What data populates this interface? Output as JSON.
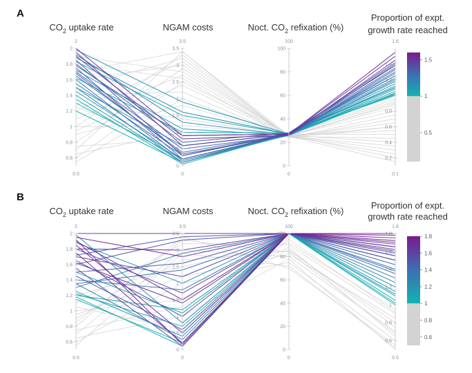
{
  "chart_data": [
    {
      "type": "parallel-coordinates",
      "panel_label": "A",
      "axes": [
        {
          "title": "CO",
          "subscript": "2",
          "title_suffix": " uptake rate",
          "title_line2": "",
          "range": [
            0.5,
            2
          ],
          "ticks": [
            "0.6",
            "0.8",
            "1",
            "1.2",
            "1.4",
            "1.6",
            "1.8",
            "2"
          ],
          "min_label": "0.5",
          "max_label": "2"
        },
        {
          "title": "NGAM costs",
          "subscript": "",
          "title_suffix": "",
          "title_line2": "",
          "range": [
            0,
            3.5
          ],
          "ticks": [
            "0",
            "0.5",
            "1",
            "1.5",
            "2",
            "2.5",
            "3",
            "3.5"
          ],
          "min_label": "0",
          "max_label": "3.5"
        },
        {
          "title": "Noct. CO",
          "subscript": "2",
          "title_suffix": " refixation (%)",
          "title_line2": "",
          "range": [
            0,
            100
          ],
          "ticks": [
            "0",
            "20",
            "40",
            "60",
            "80",
            "100"
          ],
          "min_label": "0",
          "max_label": "100"
        },
        {
          "title": "Proportion of expt.",
          "subscript": "",
          "title_suffix": "",
          "title_line2": "growth rate reached",
          "range": [
            0.1,
            1.6
          ],
          "ticks": [
            "0.2",
            "0.4",
            "0.6",
            "0.8",
            "1",
            "1.2",
            "1.4"
          ],
          "min_label": "0.1",
          "max_label": "1.6"
        }
      ],
      "colorbar": {
        "range": [
          0.1,
          1.6
        ],
        "threshold": 1,
        "ticks": [
          "0.5",
          "1",
          "1.5"
        ]
      },
      "lines": [
        {
          "values": [
            2.0,
            0.9,
            27,
            1.55
          ],
          "color": 1.55
        },
        {
          "values": [
            1.95,
            0.6,
            27,
            1.5
          ],
          "color": 1.5
        },
        {
          "values": [
            1.9,
            0.8,
            26,
            1.45
          ],
          "color": 1.45
        },
        {
          "values": [
            1.85,
            0.3,
            27,
            1.42
          ],
          "color": 1.42
        },
        {
          "values": [
            1.8,
            0.7,
            28,
            1.38
          ],
          "color": 1.38
        },
        {
          "values": [
            1.75,
            0.2,
            27,
            1.35
          ],
          "color": 1.35
        },
        {
          "values": [
            1.7,
            0.5,
            26,
            1.33
          ],
          "color": 1.33
        },
        {
          "values": [
            1.65,
            0.4,
            27,
            1.3
          ],
          "color": 1.3
        },
        {
          "values": [
            1.6,
            0.15,
            27,
            1.28
          ],
          "color": 1.28
        },
        {
          "values": [
            1.55,
            0.3,
            28,
            1.25
          ],
          "color": 1.25
        },
        {
          "values": [
            1.5,
            0.1,
            27,
            1.22
          ],
          "color": 1.22
        },
        {
          "values": [
            1.92,
            1.3,
            26,
            1.2
          ],
          "color": 1.2
        },
        {
          "values": [
            1.88,
            1.6,
            27,
            1.18
          ],
          "color": 1.18
        },
        {
          "values": [
            1.45,
            0.2,
            27,
            1.15
          ],
          "color": 1.15
        },
        {
          "values": [
            1.98,
            1.9,
            27,
            1.12
          ],
          "color": 1.12
        },
        {
          "values": [
            1.4,
            0.1,
            28,
            1.1
          ],
          "color": 1.1
        },
        {
          "values": [
            1.72,
            1.1,
            26,
            1.08
          ],
          "color": 1.08
        },
        {
          "values": [
            1.35,
            0.05,
            27,
            1.05
          ],
          "color": 1.05
        },
        {
          "values": [
            1.83,
            1.5,
            27,
            1.03
          ],
          "color": 1.03
        },
        {
          "values": [
            1.3,
            0.2,
            27,
            1.01
          ],
          "color": 1.01
        },
        {
          "values": [
            1.62,
            1.0,
            28,
            1.0
          ],
          "color": 1.0
        },
        {
          "values": [
            1.2,
            0.1,
            26,
            1.02
          ],
          "color": 1.02
        },
        {
          "values": [
            1.5,
            0.6,
            27,
            1.1
          ],
          "color": 1.1
        },
        {
          "values": [
            1.78,
            0.9,
            27,
            1.25
          ],
          "color": 1.25
        },
        {
          "values": [
            1.68,
            0.35,
            26,
            1.4
          ],
          "color": 1.4
        },
        {
          "values": [
            1.0,
            3.3,
            25,
            0.9
          ],
          "color": 0.9
        },
        {
          "values": [
            0.8,
            2.9,
            26,
            0.8
          ],
          "color": 0.8
        },
        {
          "values": [
            1.2,
            3.1,
            25,
            0.6
          ],
          "color": 0.6
        },
        {
          "values": [
            0.6,
            2.5,
            27,
            0.5
          ],
          "color": 0.5
        },
        {
          "values": [
            1.4,
            2.2,
            24,
            0.7
          ],
          "color": 0.7
        },
        {
          "values": [
            0.9,
            1.8,
            26,
            0.4
          ],
          "color": 0.4
        },
        {
          "values": [
            1.1,
            2.7,
            25,
            0.3
          ],
          "color": 0.3
        },
        {
          "values": [
            0.7,
            3.4,
            26,
            0.2
          ],
          "color": 0.2
        },
        {
          "values": [
            1.6,
            3.0,
            25,
            0.65
          ],
          "color": 0.65
        },
        {
          "values": [
            1.3,
            1.4,
            26,
            0.85
          ],
          "color": 0.85
        },
        {
          "values": [
            0.55,
            2.0,
            25,
            0.15
          ],
          "color": 0.15
        },
        {
          "values": [
            1.8,
            2.6,
            24,
            0.75
          ],
          "color": 0.75
        },
        {
          "values": [
            1.0,
            1.2,
            27,
            0.95
          ],
          "color": 0.95
        },
        {
          "values": [
            0.75,
            0.8,
            26,
            0.55
          ],
          "color": 0.55
        },
        {
          "values": [
            1.5,
            3.2,
            25,
            0.45
          ],
          "color": 0.45
        },
        {
          "values": [
            0.65,
            1.0,
            25,
            0.25
          ],
          "color": 0.25
        },
        {
          "values": [
            1.9,
            2.8,
            26,
            0.88
          ],
          "color": 0.88
        },
        {
          "values": [
            1.25,
            0.6,
            27,
            0.92
          ],
          "color": 0.92
        },
        {
          "values": [
            0.95,
            2.4,
            25,
            0.35
          ],
          "color": 0.35
        },
        {
          "values": [
            1.7,
            3.4,
            24,
            0.6
          ],
          "color": 0.6
        }
      ]
    },
    {
      "type": "parallel-coordinates",
      "panel_label": "B",
      "axes": [
        {
          "title": "CO",
          "subscript": "2",
          "title_suffix": " uptake rate",
          "title_line2": "",
          "range": [
            0.5,
            2
          ],
          "ticks": [
            "0.6",
            "0.8",
            "1",
            "1.2",
            "1.4",
            "1.6",
            "1.8",
            "2"
          ],
          "min_label": "0.5",
          "max_label": "2"
        },
        {
          "title": "NGAM costs",
          "subscript": "",
          "title_suffix": "",
          "title_line2": "",
          "range": [
            0,
            3.5
          ],
          "ticks": [
            "0",
            "0.5",
            "1",
            "1.5",
            "2",
            "2.5",
            "3",
            "3.5"
          ],
          "min_label": "0",
          "max_label": "3.5"
        },
        {
          "title": "Noct. CO",
          "subscript": "2",
          "title_suffix": " refixation (%)",
          "title_line2": "",
          "range": [
            0,
            100
          ],
          "ticks": [
            "0",
            "20",
            "40",
            "60",
            "80",
            "100"
          ],
          "min_label": "0",
          "max_label": "100"
        },
        {
          "title": "Proportion of expt.",
          "subscript": "",
          "title_suffix": "",
          "title_line2": "growth rate reached",
          "range": [
            0.5,
            1.8
          ],
          "ticks": [
            "0.6",
            "0.8",
            "1",
            "1.2",
            "1.4",
            "1.6",
            "1.8"
          ],
          "min_label": "0.5",
          "max_label": "1.8"
        }
      ],
      "colorbar": {
        "range": [
          0.5,
          1.8
        ],
        "threshold": 1,
        "ticks": [
          "0.6",
          "0.8",
          "1",
          "1.2",
          "1.4",
          "1.6",
          "1.8"
        ]
      },
      "lines": [
        {
          "values": [
            2.0,
            3.5,
            100,
            1.8
          ],
          "color": 1.8
        },
        {
          "values": [
            1.95,
            2.8,
            100,
            1.75
          ],
          "color": 1.75
        },
        {
          "values": [
            1.9,
            1.5,
            100,
            1.7
          ],
          "color": 1.7
        },
        {
          "values": [
            1.85,
            0.5,
            100,
            1.72
          ],
          "color": 1.72
        },
        {
          "values": [
            1.8,
            3.0,
            100,
            1.65
          ],
          "color": 1.65
        },
        {
          "values": [
            1.75,
            0.2,
            100,
            1.68
          ],
          "color": 1.68
        },
        {
          "values": [
            1.7,
            2.2,
            100,
            1.6
          ],
          "color": 1.6
        },
        {
          "values": [
            1.65,
            1.0,
            100,
            1.62
          ],
          "color": 1.62
        },
        {
          "values": [
            1.6,
            3.3,
            100,
            1.55
          ],
          "color": 1.55
        },
        {
          "values": [
            1.55,
            0.1,
            100,
            1.58
          ],
          "color": 1.58
        },
        {
          "values": [
            1.5,
            2.6,
            100,
            1.5
          ],
          "color": 1.5
        },
        {
          "values": [
            1.45,
            0.6,
            100,
            1.45
          ],
          "color": 1.45
        },
        {
          "values": [
            1.4,
            1.8,
            100,
            1.4
          ],
          "color": 1.4
        },
        {
          "values": [
            1.35,
            0.3,
            100,
            1.35
          ],
          "color": 1.35
        },
        {
          "values": [
            1.3,
            2.9,
            100,
            1.3
          ],
          "color": 1.3
        },
        {
          "values": [
            1.98,
            0.8,
            100,
            1.25
          ],
          "color": 1.25
        },
        {
          "values": [
            1.88,
            2.0,
            100,
            1.2
          ],
          "color": 1.2
        },
        {
          "values": [
            1.25,
            0.4,
            100,
            1.15
          ],
          "color": 1.15
        },
        {
          "values": [
            1.2,
            1.2,
            100,
            1.1
          ],
          "color": 1.1
        },
        {
          "values": [
            1.15,
            0.2,
            100,
            1.05
          ],
          "color": 1.05
        },
        {
          "values": [
            1.22,
            0.7,
            100,
            1.02
          ],
          "color": 1.02
        },
        {
          "values": [
            1.18,
            0.1,
            100,
            1.0
          ],
          "color": 1.0
        },
        {
          "values": [
            1.72,
            3.4,
            100,
            1.5
          ],
          "color": 1.5
        },
        {
          "values": [
            1.62,
            1.4,
            100,
            1.65
          ],
          "color": 1.65
        },
        {
          "values": [
            1.92,
            0.15,
            100,
            1.78
          ],
          "color": 1.78
        },
        {
          "values": [
            1.5,
            1.1,
            100,
            1.12
          ],
          "color": 1.12
        },
        {
          "values": [
            1.35,
            2.4,
            100,
            1.38
          ],
          "color": 1.38
        },
        {
          "values": [
            1.8,
            1.7,
            100,
            1.55
          ],
          "color": 1.55
        },
        {
          "values": [
            1.1,
            3.2,
            90,
            0.9
          ],
          "color": 0.9
        },
        {
          "values": [
            0.9,
            2.7,
            85,
            0.8
          ],
          "color": 0.8
        },
        {
          "values": [
            0.7,
            3.0,
            80,
            0.7
          ],
          "color": 0.7
        },
        {
          "values": [
            0.6,
            2.0,
            75,
            0.6
          ],
          "color": 0.6
        },
        {
          "values": [
            1.0,
            1.5,
            88,
            0.65
          ],
          "color": 0.65
        },
        {
          "values": [
            0.8,
            3.4,
            70,
            0.55
          ],
          "color": 0.55
        },
        {
          "values": [
            1.2,
            2.5,
            92,
            0.95
          ],
          "color": 0.95
        },
        {
          "values": [
            0.65,
            1.0,
            78,
            0.5
          ],
          "color": 0.5
        },
        {
          "values": [
            0.95,
            2.2,
            82,
            0.85
          ],
          "color": 0.85
        },
        {
          "values": [
            0.75,
            1.3,
            86,
            0.75
          ],
          "color": 0.75
        },
        {
          "values": [
            1.05,
            0.6,
            95,
            0.92
          ],
          "color": 0.92
        },
        {
          "values": [
            0.55,
            2.9,
            72,
            0.52
          ],
          "color": 0.52
        },
        {
          "values": [
            0.85,
            3.3,
            84,
            0.68
          ],
          "color": 0.68
        }
      ]
    }
  ]
}
